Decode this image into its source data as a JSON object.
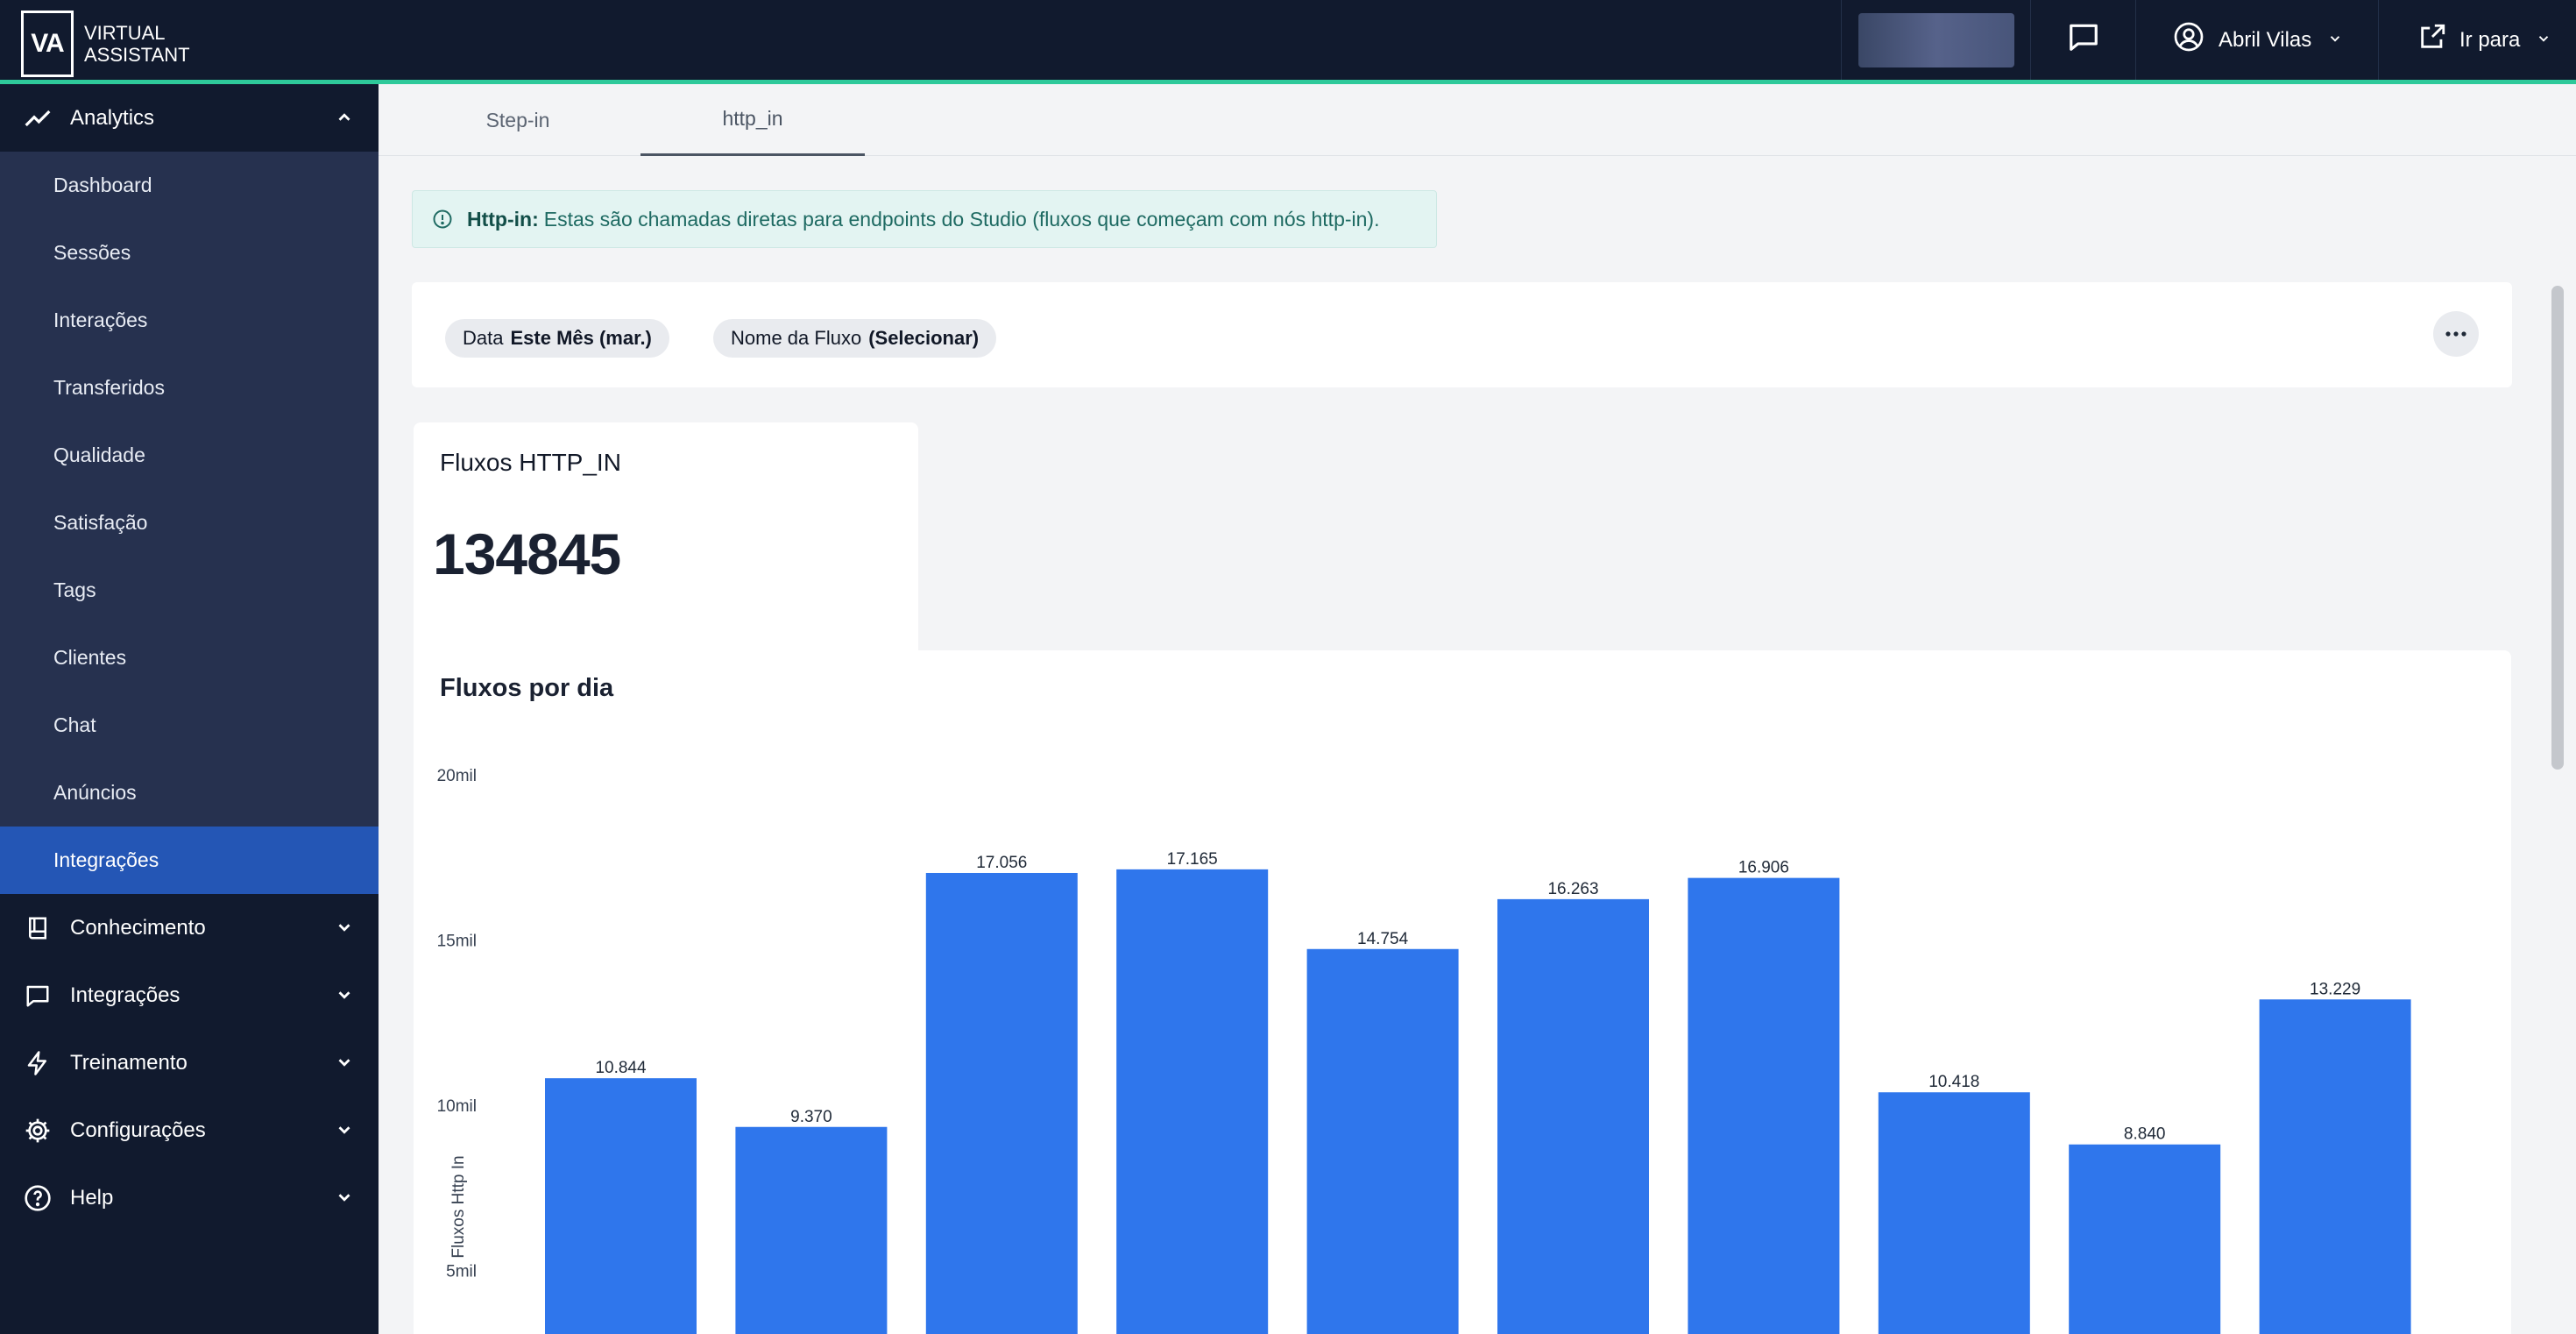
{
  "brand": {
    "logo": "VA",
    "line1": "VIRTUAL",
    "line2": "ASSISTANT",
    "accent": "#2ec99a"
  },
  "header": {
    "user_name": "Abril Vilas",
    "go_to": "Ir para"
  },
  "sidebar": {
    "analytics": {
      "label": "Analytics",
      "items": [
        {
          "label": "Dashboard"
        },
        {
          "label": "Sessões"
        },
        {
          "label": "Interações"
        },
        {
          "label": "Transferidos"
        },
        {
          "label": "Qualidade"
        },
        {
          "label": "Satisfação"
        },
        {
          "label": "Tags"
        },
        {
          "label": "Clientes"
        },
        {
          "label": "Chat"
        },
        {
          "label": "Anúncios"
        },
        {
          "label": "Integrações",
          "active": true
        }
      ]
    },
    "groups": [
      {
        "label": "Conhecimento",
        "icon": "book-icon"
      },
      {
        "label": "Integrações",
        "icon": "message-icon"
      },
      {
        "label": "Treinamento",
        "icon": "lightning-icon"
      },
      {
        "label": "Configurações",
        "icon": "gear-icon"
      },
      {
        "label": "Help",
        "icon": "help-icon"
      }
    ]
  },
  "tabs": [
    {
      "label": "Step-in"
    },
    {
      "label": "http_in",
      "active": true
    }
  ],
  "info": {
    "bold": "Http-in:",
    "text": "Estas são chamadas diretas para endpoints do Studio (fluxos que começam com nós http-in)."
  },
  "filters": [
    {
      "name": "Data",
      "value": "Este Mês (mar.)"
    },
    {
      "name": "Nome da Fluxo",
      "value": "(Selecionar)"
    }
  ],
  "kpi": {
    "title": "Fluxos HTTP_IN",
    "value": "134845"
  },
  "chart_data": {
    "type": "bar",
    "title": "Fluxos por dia",
    "ylabel": "Fluxos Http In",
    "xlabel": "",
    "ylim": [
      0,
      20000
    ],
    "yticks": [
      {
        "v": 5000,
        "label": "5mil"
      },
      {
        "v": 10000,
        "label": "10mil"
      },
      {
        "v": 15000,
        "label": "15mil"
      },
      {
        "v": 20000,
        "label": "20mil"
      }
    ],
    "values": [
      10844,
      9370,
      17056,
      17165,
      14754,
      16263,
      16906,
      10418,
      8840,
      13229
    ],
    "value_labels": [
      "10.844",
      "9.370",
      "17.056",
      "17.165",
      "14.754",
      "16.263",
      "16.906",
      "10.418",
      "8.840",
      "13.229"
    ],
    "bar_color": "#2f76ec",
    "grid": false
  }
}
